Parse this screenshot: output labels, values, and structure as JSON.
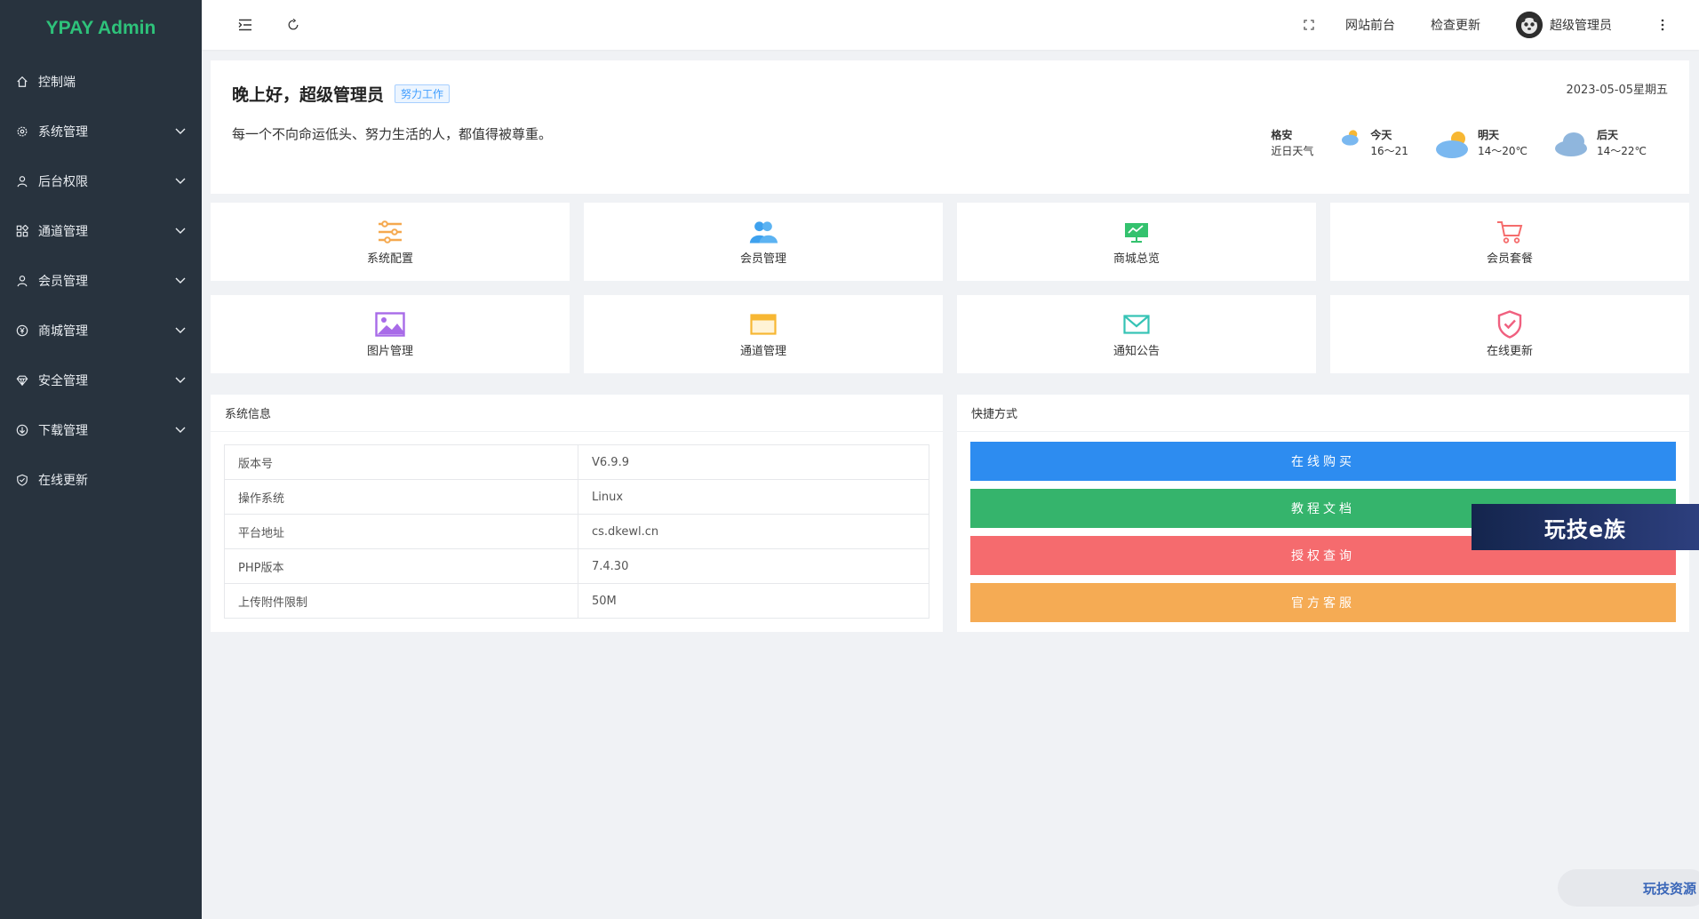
{
  "app": {
    "logo": "YPAY Admin"
  },
  "sidebar": {
    "items": [
      {
        "label": "控制端",
        "icon": "home-icon",
        "has_children": false
      },
      {
        "label": "系统管理",
        "icon": "gear-icon",
        "has_children": true
      },
      {
        "label": "后台权限",
        "icon": "user-icon",
        "has_children": true
      },
      {
        "label": "通道管理",
        "icon": "apps-icon",
        "has_children": true
      },
      {
        "label": "会员管理",
        "icon": "user-icon",
        "has_children": true
      },
      {
        "label": "商城管理",
        "icon": "yen-icon",
        "has_children": true
      },
      {
        "label": "安全管理",
        "icon": "diamond-icon",
        "has_children": true
      },
      {
        "label": "下载管理",
        "icon": "download-icon",
        "has_children": true
      },
      {
        "label": "在线更新",
        "icon": "shield-check-icon",
        "has_children": false
      }
    ]
  },
  "header": {
    "front_link": "网站前台",
    "check_update": "检查更新",
    "username": "超级管理员"
  },
  "welcome": {
    "greeting": "晚上好，超级管理员",
    "tag": "努力工作",
    "motto": "每一个不向命运低头、努力生活的人，都值得被尊重。",
    "date": "2023-05-05星期五",
    "location": "格安",
    "location_sub": "近日天气",
    "forecast": [
      {
        "day": "今天",
        "temp": "16～21"
      },
      {
        "day": "明天",
        "temp": "14～20℃"
      },
      {
        "day": "后天",
        "temp": "14～22℃"
      }
    ]
  },
  "quick": [
    {
      "label": "系统配置",
      "icon": "sliders-icon",
      "color": "#f5a94f"
    },
    {
      "label": "会员管理",
      "icon": "users-icon",
      "color": "#3ea1ee"
    },
    {
      "label": "商城总览",
      "icon": "chart-board-icon",
      "color": "#34c26e"
    },
    {
      "label": "会员套餐",
      "icon": "cart-icon",
      "color": "#f56c6c"
    },
    {
      "label": "图片管理",
      "icon": "image-icon",
      "color": "#a86be8"
    },
    {
      "label": "通道管理",
      "icon": "window-icon",
      "color": "#f7b733"
    },
    {
      "label": "通知公告",
      "icon": "mail-icon",
      "color": "#35c3b5"
    },
    {
      "label": "在线更新",
      "icon": "shield-check-icon",
      "color": "#f0607f"
    }
  ],
  "sysinfo": {
    "title": "系统信息",
    "rows": [
      {
        "key": "版本号",
        "value": "V6.9.9"
      },
      {
        "key": "操作系统",
        "value": "Linux"
      },
      {
        "key": "平台地址",
        "value": "cs.dkewl.cn"
      },
      {
        "key": "PHP版本",
        "value": "7.4.30"
      },
      {
        "key": "上传附件限制",
        "value": "50M"
      }
    ]
  },
  "shortcuts": {
    "title": "快捷方式",
    "buttons": [
      {
        "label": "在线购买",
        "color": "#2d8cf0"
      },
      {
        "label": "教程文档",
        "color": "#35b46c"
      },
      {
        "label": "授权查询",
        "color": "#f56b6e"
      },
      {
        "label": "官方客服",
        "color": "#f5ab54"
      }
    ]
  },
  "watermarks": {
    "banner": "玩技e族",
    "badge": "玩技资源"
  }
}
